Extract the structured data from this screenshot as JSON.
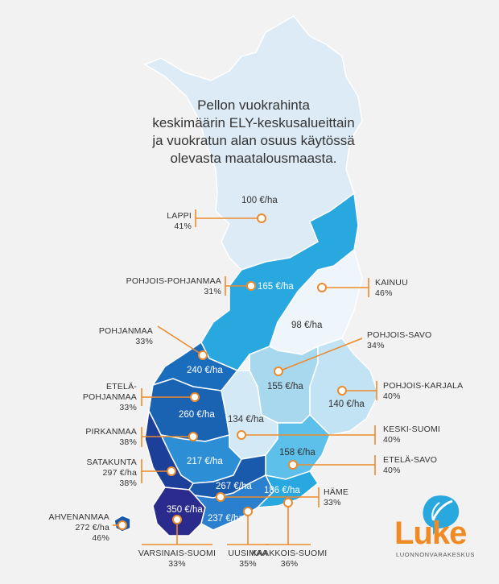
{
  "title_lines": [
    "Pellon vuokrahinta",
    "keskimäärin ELY-keskusalueittain",
    "ja vuokratun alan osuus käytössä",
    "olevasta maatalousmaasta."
  ],
  "regions": [
    {
      "id": "lappi",
      "name": "LAPPI",
      "share": "41%",
      "price": "100 €/ha",
      "color": "#dcebf6"
    },
    {
      "id": "pohjois-pohjanmaa",
      "name": "POHJOIS-POHJANMAA",
      "share": "31%",
      "price": "165 €/ha",
      "color": "#29a8df"
    },
    {
      "id": "kainuu",
      "name": "KAINUU",
      "share": "46%",
      "price": "98 €/ha",
      "color": "#eef6fb"
    },
    {
      "id": "pohjanmaa",
      "name": "POHJANMAA",
      "share": "33%",
      "price": "240 €/ha",
      "color": "#1a6dbd"
    },
    {
      "id": "pohjois-savo",
      "name": "POHJOIS-SAVO",
      "share": "34%",
      "price": "155 €/ha",
      "color": "#a7d8ee"
    },
    {
      "id": "etela-pohjanmaa",
      "name_lines": [
        "ETELÄ-",
        "POHJANMAA"
      ],
      "share": "33%",
      "price": "260 €/ha",
      "color": "#1a63b3"
    },
    {
      "id": "pohjois-karjala",
      "name": "POHJOIS-KARJALA",
      "share": "40%",
      "price": "140 €/ha",
      "color": "#c2e3f3"
    },
    {
      "id": "keski-suomi",
      "name": "KESKI-SUOMI",
      "share": "40%",
      "price": "134 €/ha",
      "color": "#d3eaf6"
    },
    {
      "id": "pirkanmaa",
      "name": "PIRKANMAA",
      "share": "38%",
      "price": "217 €/ha",
      "color": "#2c8fd6"
    },
    {
      "id": "etela-savo",
      "name": "ETELÄ-SAVO",
      "share": "40%",
      "price": "158 €/ha",
      "color": "#5cc0ea"
    },
    {
      "id": "satakunta",
      "name": "SATAKUNTA",
      "share": "38%",
      "price": "297 €/ha",
      "color": "#1c3f9a"
    },
    {
      "id": "hame",
      "name": "HÄME",
      "share": "33%",
      "price": "267 €/ha",
      "color": "#1a5aad"
    },
    {
      "id": "varsinais-suomi",
      "name": "VARSINAIS-SUOMI",
      "share": "33%",
      "price": "350 €/ha",
      "color": "#2a2b8c"
    },
    {
      "id": "uusimaa",
      "name": "UUSIMAA",
      "share": "35%",
      "price": "237 €/ha",
      "color": "#2a80cf"
    },
    {
      "id": "kaakkois-suomi",
      "name": "KAAKKOIS-SUOMI",
      "share": "36%",
      "price": "186 €/ha",
      "color": "#29a8df"
    },
    {
      "id": "ahvenanmaa",
      "name": "AHVENANMAA",
      "share": "46%",
      "price": "272 €/ha",
      "color": "#1a5aad"
    }
  ],
  "colors": {
    "accent": "#ee8a2b",
    "label_text": "#333333",
    "background": "#f2f2f2"
  },
  "logo": {
    "word": "Luke",
    "subtitle": "LUONNONVARAKESKUS",
    "icon": "leaf-speech-bubble-icon"
  }
}
